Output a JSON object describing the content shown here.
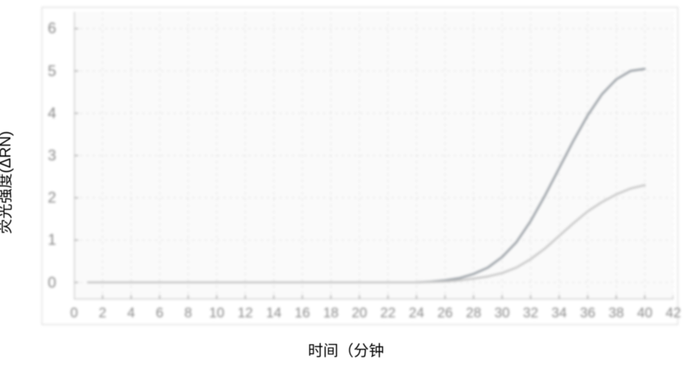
{
  "chart": {
    "type": "line",
    "xlabel": "时间（分钟",
    "ylabel": "荧光强度(ΔRN)",
    "background_color": "#ffffff",
    "plot_bg_color": "#fafafa",
    "axis_color": "#b8b8b8",
    "grid_color": "#d8d8d8",
    "tick_color": "#888888",
    "title_fontsize": 22,
    "tick_fontsize": 20,
    "xlim": [
      0,
      42
    ],
    "ylim": [
      -0.4,
      6.4
    ],
    "xticks": [
      0,
      2,
      4,
      6,
      8,
      10,
      12,
      14,
      16,
      18,
      20,
      22,
      24,
      26,
      28,
      30,
      32,
      34,
      36,
      38,
      40,
      42
    ],
    "yticks": [
      0,
      1,
      2,
      3,
      4,
      5,
      6
    ],
    "line_width": 3,
    "series": [
      {
        "name": "series-a",
        "color": "#9aa0a6",
        "x": [
          1,
          2,
          4,
          6,
          8,
          10,
          12,
          14,
          16,
          18,
          20,
          22,
          24,
          25,
          26,
          27,
          28,
          29,
          30,
          31,
          32,
          33,
          34,
          35,
          36,
          37,
          38,
          39,
          40
        ],
        "y": [
          0,
          0,
          0,
          0,
          0,
          0,
          0,
          0,
          0,
          0,
          0,
          0,
          0,
          0.02,
          0.05,
          0.1,
          0.2,
          0.35,
          0.6,
          0.95,
          1.45,
          2.05,
          2.7,
          3.35,
          3.95,
          4.45,
          4.8,
          5.0,
          5.05
        ]
      },
      {
        "name": "series-b",
        "color": "#c8c8c8",
        "x": [
          1,
          2,
          4,
          6,
          8,
          10,
          12,
          14,
          16,
          18,
          20,
          22,
          24,
          25,
          26,
          27,
          28,
          29,
          30,
          31,
          32,
          33,
          34,
          35,
          36,
          37,
          38,
          39,
          40
        ],
        "y": [
          0,
          0,
          0,
          0,
          0,
          0,
          0,
          0,
          0,
          0,
          0,
          0,
          0,
          0.01,
          0.02,
          0.05,
          0.09,
          0.14,
          0.22,
          0.35,
          0.55,
          0.8,
          1.1,
          1.4,
          1.68,
          1.9,
          2.08,
          2.22,
          2.3
        ]
      }
    ]
  }
}
